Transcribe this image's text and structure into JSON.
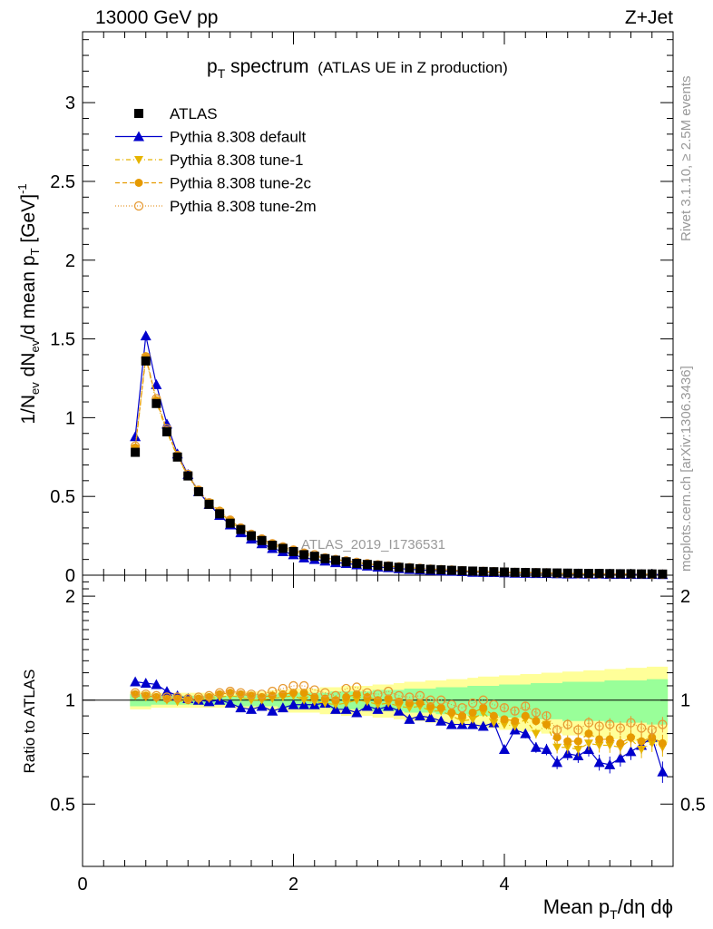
{
  "header": {
    "left": "13000 GeV pp",
    "right": "Z+Jet"
  },
  "side_text": {
    "rivet": "Rivet 3.1.10, ≥ 2.5M events",
    "mcplots": "mcplots.cern.ch [arXiv:1306.3436]"
  },
  "plot": {
    "title_main": "p",
    "title_sub": "T",
    "title_rest": " spectrum",
    "title_paren": "(ATLAS UE in Z production)",
    "analysis_id": "ATLAS_2019_I1736531",
    "ylabel_top": "1/N_ev dN_ev/d mean p_T [GeV]^-1",
    "ylabel_ratio": "Ratio to ATLAS",
    "xlabel": "Mean p_T/dη dϕ"
  },
  "legend": [
    {
      "label": "ATLAS"
    },
    {
      "label": "Pythia 8.308 default"
    },
    {
      "label": "Pythia 8.308 tune-1"
    },
    {
      "label": "Pythia 8.308 tune-2c"
    },
    {
      "label": "Pythia 8.308 tune-2m"
    }
  ],
  "colors": {
    "data": "#000000",
    "default": "#0000cc",
    "tune1": "#e6b400",
    "tune2c": "#e69a00",
    "tune2m": "#e69a33",
    "band_inner": "#99ff99",
    "band_outer": "#ffff99"
  },
  "chart_data": {
    "type": "line",
    "main": {
      "xlim": [
        0,
        5.6
      ],
      "ylim": [
        0,
        3.45
      ],
      "yticks": [
        0,
        0.5,
        1,
        1.5,
        2,
        2.5,
        3
      ],
      "ytick_labels": [
        "0",
        "0.5",
        "1",
        "1.5",
        "2",
        "2.5",
        "3"
      ],
      "x": [
        0.5,
        0.6,
        0.7,
        0.8,
        0.9,
        1.0,
        1.1,
        1.2,
        1.3,
        1.4,
        1.5,
        1.6,
        1.7,
        1.8,
        1.9,
        2.0,
        2.1,
        2.2,
        2.3,
        2.4,
        2.5,
        2.6,
        2.7,
        2.8,
        2.9,
        3.0,
        3.1,
        3.2,
        3.3,
        3.4,
        3.5,
        3.6,
        3.7,
        3.8,
        3.9,
        4.0,
        4.1,
        4.2,
        4.3,
        4.4,
        4.5,
        4.6,
        4.7,
        4.8,
        4.9,
        5.0,
        5.1,
        5.2,
        5.3,
        5.4,
        5.5
      ],
      "series": [
        {
          "name": "ATLAS",
          "values": [
            0.78,
            1.36,
            1.09,
            0.91,
            0.75,
            0.63,
            0.53,
            0.45,
            0.39,
            0.33,
            0.29,
            0.25,
            0.22,
            0.19,
            0.17,
            0.15,
            0.13,
            0.12,
            0.105,
            0.095,
            0.085,
            0.075,
            0.068,
            0.062,
            0.056,
            0.05,
            0.045,
            0.041,
            0.037,
            0.034,
            0.031,
            0.028,
            0.026,
            0.024,
            0.022,
            0.02,
            0.018,
            0.017,
            0.016,
            0.015,
            0.014,
            0.013,
            0.012,
            0.011,
            0.011,
            0.01,
            0.009,
            0.009,
            0.008,
            0.008,
            0.007
          ]
        },
        {
          "name": "Pythia 8.308 default",
          "values": [
            0.88,
            1.52,
            1.21,
            0.96,
            0.77,
            0.64,
            0.53,
            0.45,
            0.38,
            0.32,
            0.27,
            0.23,
            0.2,
            0.17,
            0.15,
            0.13,
            0.11,
            0.1,
            0.09,
            0.08,
            0.075,
            0.066,
            0.058,
            0.052,
            0.048,
            0.042,
            0.037,
            0.034,
            0.03,
            0.027,
            0.025,
            0.023,
            0.019,
            0.018,
            0.017,
            0.015,
            0.013,
            0.012,
            0.011,
            0.011,
            0.009,
            0.008,
            0.008,
            0.007,
            0.007,
            0.006,
            0.006,
            0.006,
            0.005,
            0.005,
            0.004
          ]
        },
        {
          "name": "Pythia 8.308 tune-1",
          "values": [
            0.8,
            1.38,
            1.1,
            0.91,
            0.75,
            0.63,
            0.53,
            0.46,
            0.4,
            0.34,
            0.29,
            0.25,
            0.22,
            0.19,
            0.17,
            0.15,
            0.13,
            0.12,
            0.11,
            0.1,
            0.088,
            0.077,
            0.07,
            0.063,
            0.056,
            0.05,
            0.045,
            0.041,
            0.036,
            0.033,
            0.03,
            0.027,
            0.023,
            0.022,
            0.02,
            0.018,
            0.016,
            0.015,
            0.014,
            0.013,
            0.01,
            0.009,
            0.009,
            0.008,
            0.008,
            0.007,
            0.007,
            0.006,
            0.006,
            0.006,
            0.005
          ]
        },
        {
          "name": "Pythia 8.308 tune-2c",
          "values": [
            0.81,
            1.39,
            1.11,
            0.92,
            0.76,
            0.63,
            0.54,
            0.46,
            0.41,
            0.35,
            0.3,
            0.26,
            0.23,
            0.2,
            0.18,
            0.16,
            0.14,
            0.12,
            0.11,
            0.1,
            0.09,
            0.08,
            0.072,
            0.065,
            0.058,
            0.052,
            0.047,
            0.043,
            0.038,
            0.035,
            0.032,
            0.029,
            0.025,
            0.023,
            0.021,
            0.019,
            0.017,
            0.016,
            0.015,
            0.013,
            0.011,
            0.01,
            0.009,
            0.009,
            0.008,
            0.008,
            0.007,
            0.007,
            0.006,
            0.006,
            0.005
          ]
        },
        {
          "name": "Pythia 8.308 tune-2m",
          "values": [
            0.82,
            1.38,
            1.12,
            0.93,
            0.76,
            0.64,
            0.54,
            0.46,
            0.4,
            0.35,
            0.3,
            0.26,
            0.23,
            0.2,
            0.18,
            0.16,
            0.14,
            0.13,
            0.11,
            0.1,
            0.091,
            0.082,
            0.073,
            0.066,
            0.059,
            0.053,
            0.048,
            0.044,
            0.039,
            0.036,
            0.033,
            0.029,
            0.026,
            0.024,
            0.022,
            0.02,
            0.018,
            0.017,
            0.016,
            0.015,
            0.012,
            0.011,
            0.01,
            0.009,
            0.009,
            0.008,
            0.008,
            0.007,
            0.007,
            0.006,
            0.006
          ]
        }
      ]
    },
    "ratio": {
      "xlim": [
        0,
        5.6
      ],
      "ylim": [
        0.33,
        2.3
      ],
      "yticks": [
        0.5,
        1,
        2
      ],
      "ytick_labels": [
        "0.5",
        "1",
        "2"
      ],
      "xticks": [
        0,
        2,
        4
      ],
      "xtick_labels": [
        "0",
        "2",
        "4"
      ],
      "x": [
        0.5,
        0.6,
        0.7,
        0.8,
        0.9,
        1.0,
        1.1,
        1.2,
        1.3,
        1.4,
        1.5,
        1.6,
        1.7,
        1.8,
        1.9,
        2.0,
        2.1,
        2.2,
        2.3,
        2.4,
        2.5,
        2.6,
        2.7,
        2.8,
        2.9,
        3.0,
        3.1,
        3.2,
        3.3,
        3.4,
        3.5,
        3.6,
        3.7,
        3.8,
        3.9,
        4.0,
        4.1,
        4.2,
        4.3,
        4.4,
        4.5,
        4.6,
        4.7,
        4.8,
        4.9,
        5.0,
        5.1,
        5.2,
        5.3,
        5.4,
        5.5
      ],
      "series": [
        {
          "name": "Pythia 8.308 default",
          "values": [
            1.13,
            1.12,
            1.11,
            1.06,
            1.03,
            1.01,
            1.0,
            0.99,
            1.0,
            0.98,
            0.95,
            0.94,
            0.96,
            0.93,
            0.95,
            0.97,
            0.97,
            0.97,
            0.98,
            0.94,
            0.94,
            0.92,
            0.96,
            0.94,
            0.96,
            0.93,
            0.88,
            0.9,
            0.89,
            0.87,
            0.85,
            0.85,
            0.85,
            0.84,
            0.86,
            0.72,
            0.82,
            0.8,
            0.73,
            0.72,
            0.66,
            0.7,
            0.69,
            0.72,
            0.66,
            0.65,
            0.68,
            0.71,
            0.74,
            0.78,
            0.62
          ]
        },
        {
          "name": "Pythia 8.308 tune-1",
          "values": [
            1.03,
            1.02,
            1.01,
            1.0,
            0.99,
            1.0,
            1.0,
            1.01,
            1.02,
            1.03,
            1.02,
            1.0,
            1.0,
            1.01,
            1.02,
            1.03,
            1.0,
            0.99,
            0.98,
            0.97,
            0.98,
            1.0,
            0.99,
            0.97,
            0.98,
            0.96,
            0.95,
            0.96,
            0.93,
            0.93,
            0.9,
            0.87,
            0.88,
            0.92,
            0.86,
            0.85,
            0.84,
            0.88,
            0.8,
            0.85,
            0.73,
            0.73,
            0.72,
            0.75,
            0.74,
            0.74,
            0.73,
            0.77,
            0.72,
            0.75,
            0.73
          ]
        },
        {
          "name": "Pythia 8.308 tune-2c",
          "values": [
            1.04,
            1.03,
            1.02,
            1.01,
            1.01,
            1.0,
            1.01,
            1.02,
            1.04,
            1.05,
            1.04,
            1.03,
            1.02,
            1.03,
            1.04,
            1.05,
            1.05,
            1.02,
            1.01,
            1.0,
            1.02,
            1.04,
            1.02,
            1.0,
            1.01,
            0.99,
            0.98,
            0.98,
            0.96,
            0.95,
            0.92,
            0.9,
            0.92,
            0.95,
            0.9,
            0.88,
            0.87,
            0.9,
            0.87,
            0.85,
            0.78,
            0.76,
            0.76,
            0.8,
            0.77,
            0.77,
            0.75,
            0.78,
            0.76,
            0.78,
            0.75
          ]
        },
        {
          "name": "Pythia 8.308 tune-2m",
          "values": [
            1.05,
            1.04,
            1.03,
            1.02,
            1.02,
            1.01,
            1.02,
            1.03,
            1.05,
            1.06,
            1.05,
            1.04,
            1.04,
            1.06,
            1.08,
            1.1,
            1.1,
            1.07,
            1.05,
            1.03,
            1.08,
            1.09,
            1.05,
            1.04,
            1.06,
            1.03,
            1.02,
            1.03,
            1.0,
            1.0,
            0.97,
            0.95,
            0.98,
            1.0,
            0.97,
            0.95,
            0.93,
            0.96,
            0.92,
            0.9,
            0.82,
            0.85,
            0.82,
            0.86,
            0.84,
            0.85,
            0.83,
            0.86,
            0.83,
            0.82,
            0.85
          ]
        }
      ],
      "band_inner": [
        0.04,
        0.04,
        0.03,
        0.03,
        0.03,
        0.03,
        0.03,
        0.03,
        0.03,
        0.03,
        0.04,
        0.04,
        0.04,
        0.04,
        0.05,
        0.05,
        0.05,
        0.05,
        0.05,
        0.06,
        0.06,
        0.06,
        0.06,
        0.07,
        0.07,
        0.07,
        0.08,
        0.08,
        0.08,
        0.09,
        0.09,
        0.09,
        0.1,
        0.1,
        0.1,
        0.11,
        0.11,
        0.11,
        0.12,
        0.12,
        0.12,
        0.13,
        0.13,
        0.13,
        0.13,
        0.14,
        0.14,
        0.14,
        0.14,
        0.15,
        0.15
      ],
      "band_outer": [
        0.06,
        0.06,
        0.05,
        0.05,
        0.05,
        0.05,
        0.05,
        0.05,
        0.05,
        0.05,
        0.06,
        0.06,
        0.06,
        0.07,
        0.07,
        0.08,
        0.08,
        0.08,
        0.09,
        0.09,
        0.1,
        0.1,
        0.1,
        0.11,
        0.11,
        0.12,
        0.13,
        0.13,
        0.14,
        0.14,
        0.15,
        0.15,
        0.16,
        0.17,
        0.17,
        0.18,
        0.18,
        0.19,
        0.19,
        0.2,
        0.2,
        0.21,
        0.21,
        0.22,
        0.22,
        0.23,
        0.23,
        0.24,
        0.24,
        0.25,
        0.25
      ]
    }
  }
}
